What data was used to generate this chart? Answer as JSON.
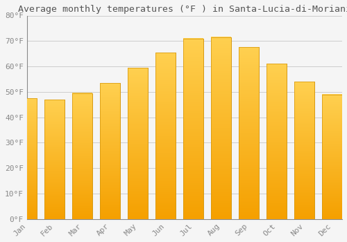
{
  "title": "Average monthly temperatures (°F ) in Santa-Lucia-di-Moriani",
  "months": [
    "Jan",
    "Feb",
    "Mar",
    "Apr",
    "May",
    "Jun",
    "Jul",
    "Aug",
    "Sep",
    "Oct",
    "Nov",
    "Dec"
  ],
  "values": [
    47.5,
    47.0,
    49.5,
    53.5,
    59.5,
    65.5,
    71.0,
    71.5,
    67.5,
    61.0,
    54.0,
    49.0
  ],
  "bar_color_top": "#FFC020",
  "bar_color_bottom": "#F5A800",
  "bar_color_edge": "#D4950A",
  "ylim": [
    0,
    80
  ],
  "yticks": [
    0,
    10,
    20,
    30,
    40,
    50,
    60,
    70,
    80
  ],
  "ytick_labels": [
    "0°F",
    "10°F",
    "20°F",
    "30°F",
    "40°F",
    "50°F",
    "60°F",
    "70°F",
    "80°F"
  ],
  "background_color": "#F5F5F5",
  "grid_color": "#CCCCCC",
  "title_fontsize": 9.5,
  "tick_fontsize": 8,
  "font_family": "monospace",
  "bar_width": 0.72
}
